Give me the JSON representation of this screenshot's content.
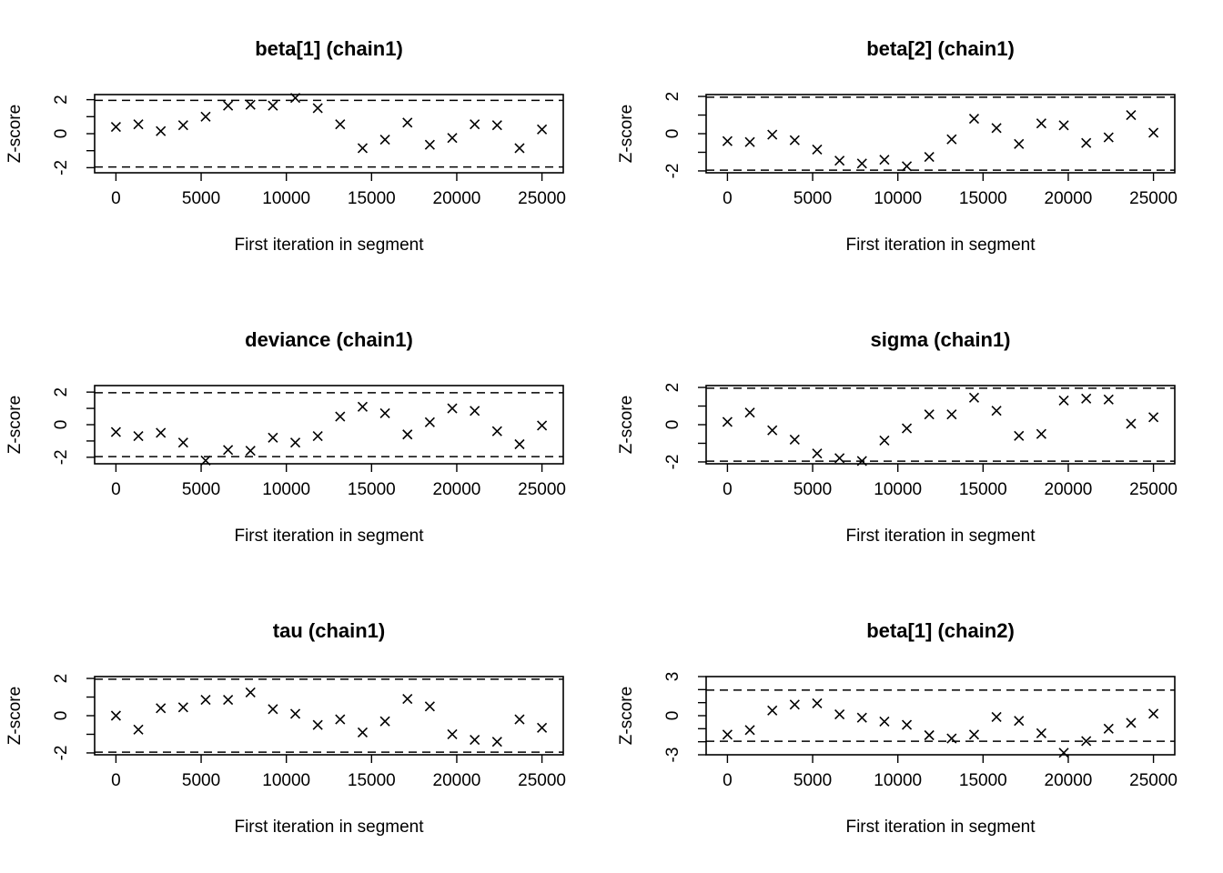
{
  "figure": {
    "background": "#ffffff",
    "point_color": "#000000"
  },
  "chart_data": [
    {
      "type": "scatter",
      "marker": "x",
      "title": "beta[1] (chain1)",
      "xlabel": "First iteration in segment",
      "ylabel": "Z-score",
      "xlim": [
        -1250,
        26250
      ],
      "ylim": [
        -2.3,
        2.3
      ],
      "xticks": [
        0,
        5000,
        10000,
        15000,
        20000,
        25000
      ],
      "xtick_labels": [
        "0",
        "5000",
        "10000",
        "15000",
        "20000",
        "25000"
      ],
      "yticks": [
        -2,
        -1,
        0,
        1,
        2
      ],
      "ytick_labels": [
        "-2",
        "",
        "0",
        "",
        "2"
      ],
      "reference_lines": [
        -1.96,
        1.96
      ],
      "x": [
        0,
        1316,
        2632,
        3947,
        5263,
        6579,
        7895,
        9211,
        10526,
        11842,
        13158,
        14474,
        15789,
        17105,
        18421,
        19737,
        21053,
        22368,
        23684,
        25000
      ],
      "y": [
        0.4,
        0.55,
        0.15,
        0.5,
        1.0,
        1.65,
        1.7,
        1.65,
        2.1,
        1.5,
        0.55,
        -0.85,
        -0.35,
        0.65,
        -0.65,
        -0.25,
        0.55,
        0.5,
        -0.85,
        0.25
      ]
    },
    {
      "type": "scatter",
      "marker": "x",
      "title": "beta[2] (chain1)",
      "xlabel": "First iteration in segment",
      "ylabel": "Z-score",
      "xlim": [
        -1250,
        26250
      ],
      "ylim": [
        -2.1,
        2.1
      ],
      "xticks": [
        0,
        5000,
        10000,
        15000,
        20000,
        25000
      ],
      "xtick_labels": [
        "0",
        "5000",
        "10000",
        "15000",
        "20000",
        "25000"
      ],
      "yticks": [
        -2,
        -1,
        0,
        1,
        2
      ],
      "ytick_labels": [
        "-2",
        "",
        "0",
        "",
        "2"
      ],
      "reference_lines": [
        -1.96,
        1.96
      ],
      "x": [
        0,
        1316,
        2632,
        3947,
        5263,
        6579,
        7895,
        9211,
        10526,
        11842,
        13158,
        14474,
        15789,
        17105,
        18421,
        19737,
        21053,
        22368,
        23684,
        25000
      ],
      "y": [
        -0.4,
        -0.45,
        -0.05,
        -0.35,
        -0.85,
        -1.45,
        -1.6,
        -1.4,
        -1.75,
        -1.25,
        -0.3,
        0.8,
        0.3,
        -0.55,
        0.55,
        0.45,
        -0.5,
        -0.2,
        1.0,
        0.05
      ]
    },
    {
      "type": "scatter",
      "marker": "x",
      "title": "deviance (chain1)",
      "xlabel": "First iteration in segment",
      "ylabel": "Z-score",
      "xlim": [
        -1250,
        26250
      ],
      "ylim": [
        -2.4,
        2.4
      ],
      "xticks": [
        0,
        5000,
        10000,
        15000,
        20000,
        25000
      ],
      "xtick_labels": [
        "0",
        "5000",
        "10000",
        "15000",
        "20000",
        "25000"
      ],
      "yticks": [
        -2,
        -1,
        0,
        1,
        2
      ],
      "ytick_labels": [
        "-2",
        "",
        "0",
        "",
        "2"
      ],
      "reference_lines": [
        -1.96,
        1.96
      ],
      "x": [
        0,
        1316,
        2632,
        3947,
        5263,
        6579,
        7895,
        9211,
        10526,
        11842,
        13158,
        14474,
        15789,
        17105,
        18421,
        19737,
        21053,
        22368,
        23684,
        25000
      ],
      "y": [
        -0.45,
        -0.7,
        -0.5,
        -1.1,
        -2.2,
        -1.55,
        -1.6,
        -0.8,
        -1.1,
        -0.7,
        0.5,
        1.1,
        0.7,
        -0.6,
        0.15,
        1.0,
        0.85,
        -0.4,
        -1.2,
        -0.05
      ]
    },
    {
      "type": "scatter",
      "marker": "x",
      "title": "sigma (chain1)",
      "xlabel": "First iteration in segment",
      "ylabel": "Z-score",
      "xlim": [
        -1250,
        26250
      ],
      "ylim": [
        -2.1,
        2.1
      ],
      "xticks": [
        0,
        5000,
        10000,
        15000,
        20000,
        25000
      ],
      "xtick_labels": [
        "0",
        "5000",
        "10000",
        "15000",
        "20000",
        "25000"
      ],
      "yticks": [
        -2,
        -1,
        0,
        1,
        2
      ],
      "ytick_labels": [
        "-2",
        "",
        "0",
        "",
        "2"
      ],
      "reference_lines": [
        -1.96,
        1.96
      ],
      "x": [
        0,
        1316,
        2632,
        3947,
        5263,
        6579,
        7895,
        9211,
        10526,
        11842,
        13158,
        14474,
        15789,
        17105,
        18421,
        19737,
        21053,
        22368,
        23684,
        25000
      ],
      "y": [
        0.15,
        0.65,
        -0.3,
        -0.8,
        -1.55,
        -1.8,
        -1.95,
        -0.85,
        -0.2,
        0.55,
        0.55,
        1.45,
        0.75,
        -0.6,
        -0.5,
        1.3,
        1.4,
        1.35,
        0.05,
        0.4
      ]
    },
    {
      "type": "scatter",
      "marker": "x",
      "title": "tau (chain1)",
      "xlabel": "First iteration in segment",
      "ylabel": "Z-score",
      "xlim": [
        -1250,
        26250
      ],
      "ylim": [
        -2.1,
        2.1
      ],
      "xticks": [
        0,
        5000,
        10000,
        15000,
        20000,
        25000
      ],
      "xtick_labels": [
        "0",
        "5000",
        "10000",
        "15000",
        "20000",
        "25000"
      ],
      "yticks": [
        -2,
        -1,
        0,
        1,
        2
      ],
      "ytick_labels": [
        "-2",
        "",
        "0",
        "",
        "2"
      ],
      "reference_lines": [
        -1.96,
        1.96
      ],
      "x": [
        0,
        1316,
        2632,
        3947,
        5263,
        6579,
        7895,
        9211,
        10526,
        11842,
        13158,
        14474,
        15789,
        17105,
        18421,
        19737,
        21053,
        22368,
        23684,
        25000
      ],
      "y": [
        0.0,
        -0.75,
        0.4,
        0.45,
        0.85,
        0.85,
        1.25,
        0.35,
        0.1,
        -0.5,
        -0.2,
        -0.9,
        -0.3,
        0.9,
        0.5,
        -1.0,
        -1.3,
        -1.4,
        -0.2,
        -0.65
      ]
    },
    {
      "type": "scatter",
      "marker": "x",
      "title": "beta[1] (chain2)",
      "xlabel": "First iteration in segment",
      "ylabel": "Z-score",
      "xlim": [
        -1250,
        26250
      ],
      "ylim": [
        -3.0,
        3.0
      ],
      "xticks": [
        0,
        5000,
        10000,
        15000,
        20000,
        25000
      ],
      "xtick_labels": [
        "0",
        "5000",
        "10000",
        "15000",
        "20000",
        "25000"
      ],
      "yticks": [
        -3,
        -2,
        -1,
        0,
        1,
        2,
        3
      ],
      "ytick_labels": [
        "-3",
        "",
        "",
        "0",
        "",
        "",
        "3"
      ],
      "reference_lines": [
        -1.96,
        1.96
      ],
      "x": [
        0,
        1316,
        2632,
        3947,
        5263,
        6579,
        7895,
        9211,
        10526,
        11842,
        13158,
        14474,
        15789,
        17105,
        18421,
        19737,
        21053,
        22368,
        23684,
        25000
      ],
      "y": [
        -1.45,
        -1.1,
        0.4,
        0.85,
        0.95,
        0.1,
        -0.15,
        -0.45,
        -0.7,
        -1.5,
        -1.75,
        -1.45,
        -0.1,
        -0.4,
        -1.35,
        -2.85,
        -1.95,
        -1.0,
        -0.55,
        0.15
      ]
    }
  ]
}
